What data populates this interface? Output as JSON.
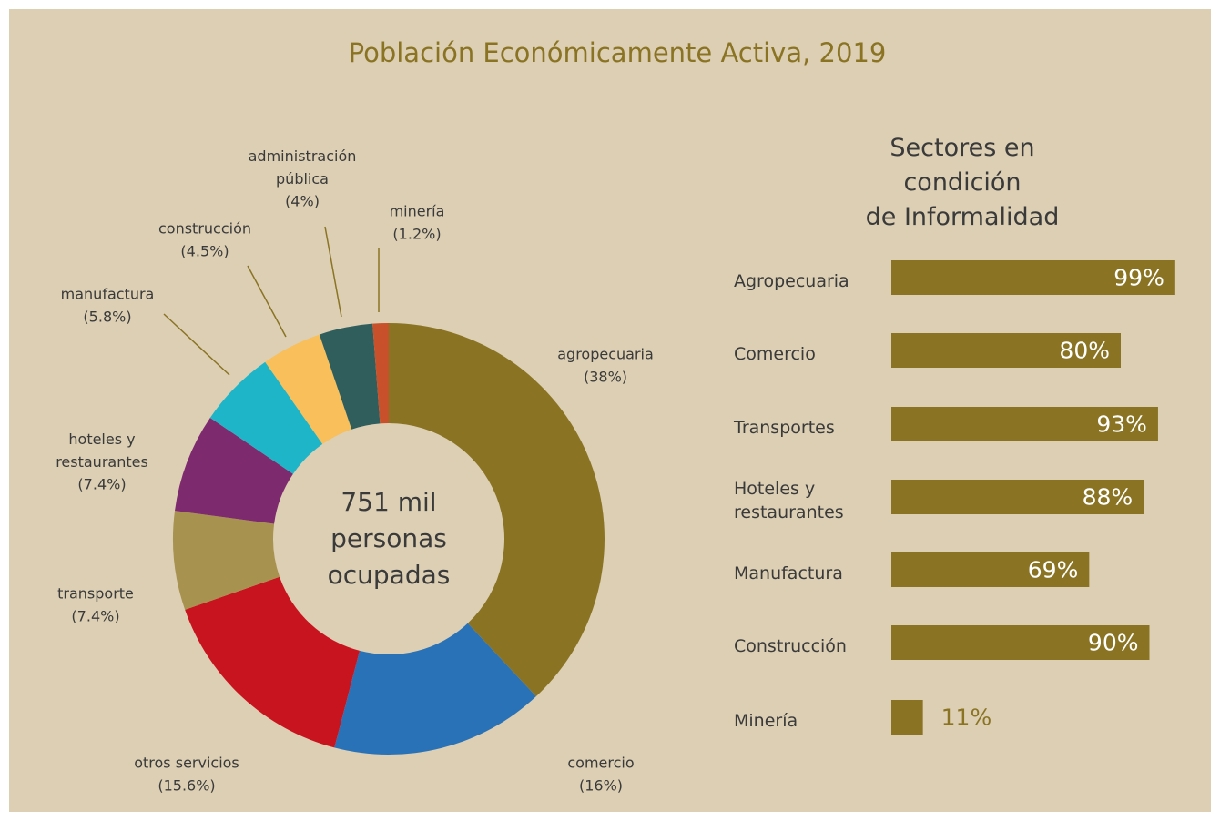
{
  "title": "Población Económicamente Activa, 2019",
  "chart_data": [
    {
      "type": "donut",
      "center_label": "751 mil\npersonas\nocupadas",
      "categories": [
        "agropecuaria",
        "comercio",
        "otros servicios",
        "transporte",
        "hoteles y\nrestaurantes",
        "manufactura",
        "construcción",
        "administración\npública",
        "minería"
      ],
      "values": [
        38,
        16,
        15.6,
        7.4,
        7.4,
        5.8,
        4.5,
        4,
        1.2
      ],
      "value_labels": [
        "(38%)",
        "(16%)",
        "(15.6%)",
        "(7.4%)",
        "(7.4%)",
        "(5.8%)",
        "(4.5%)",
        "(4%)",
        "(1.2%)"
      ],
      "colors": [
        "#8a7424",
        "#2a72b8",
        "#c8141e",
        "#a8924f",
        "#7e2a6e",
        "#1fb5c8",
        "#f8bf5a",
        "#2f5e5d",
        "#c8502a"
      ]
    },
    {
      "type": "hbar",
      "title": "Sectores en condición\nde Informalidad",
      "categories": [
        "Agropecuaria",
        "Comercio",
        "Transportes",
        "Hoteles y\nrestaurantes",
        "Manufactura",
        "Construcción",
        "Minería"
      ],
      "values": [
        99,
        80,
        93,
        88,
        69,
        90,
        11
      ],
      "value_labels": [
        "99%",
        "80%",
        "93%",
        "88%",
        "69%",
        "90%",
        "11%"
      ],
      "color": "#8a7424",
      "xlim": [
        0,
        100
      ]
    }
  ]
}
